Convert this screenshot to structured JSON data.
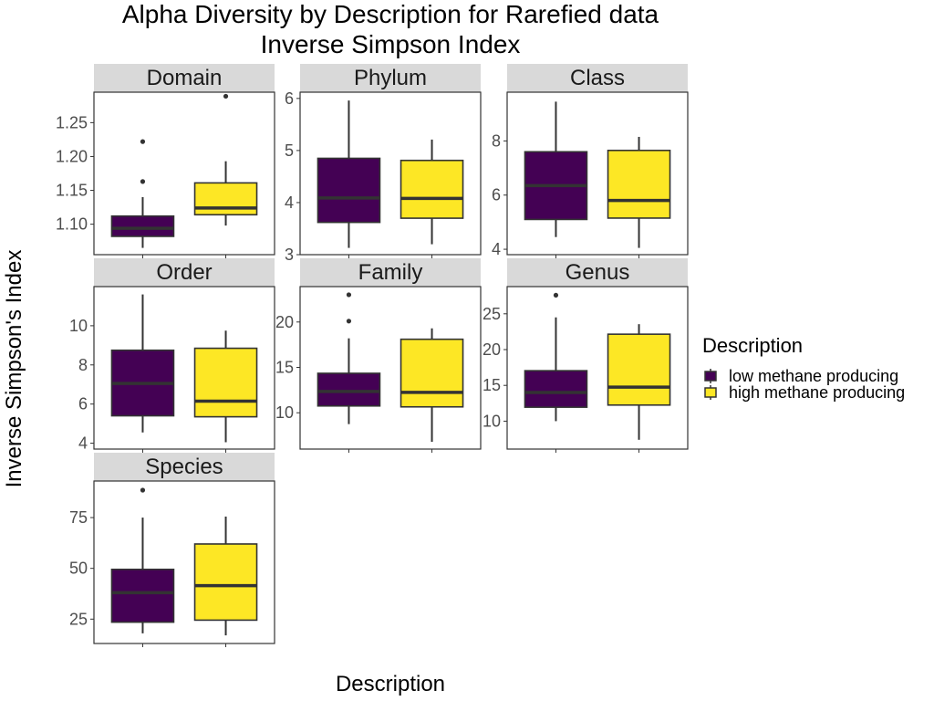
{
  "chart_data": {
    "type": "boxplot",
    "title": "Alpha Diversity by Description for Rarefied data",
    "subtitle": "Inverse Simpson Index",
    "xlabel": "Description",
    "ylabel": "Inverse Simpson's Index",
    "legend": {
      "title": "Description",
      "placement": "right",
      "entries": [
        {
          "label": "low methane producing",
          "color": "#440154"
        },
        {
          "label": "high methane producing",
          "color": "#FDE725"
        }
      ]
    },
    "facets": [
      {
        "name": "Domain",
        "ylim": [
          1.055,
          1.295
        ],
        "yticks": [
          1.1,
          1.15,
          1.2,
          1.25
        ],
        "ytick_labels": [
          "1.10",
          "1.15",
          "1.20",
          "1.25"
        ],
        "boxes": [
          {
            "group": "low methane producing",
            "min": 1.065,
            "q1": 1.082,
            "median": 1.094,
            "q3": 1.112,
            "max": 1.14,
            "outliers": [
              1.163,
              1.222
            ]
          },
          {
            "group": "high methane producing",
            "min": 1.098,
            "q1": 1.114,
            "median": 1.124,
            "q3": 1.161,
            "max": 1.193,
            "outliers": [
              1.289
            ]
          }
        ]
      },
      {
        "name": "Phylum",
        "ylim": [
          3.0,
          6.12
        ],
        "yticks": [
          3,
          4,
          5,
          6
        ],
        "ytick_labels": [
          "3",
          "4",
          "5",
          "6"
        ],
        "boxes": [
          {
            "group": "low methane producing",
            "min": 3.13,
            "q1": 3.62,
            "median": 4.09,
            "q3": 4.85,
            "max": 5.96,
            "outliers": []
          },
          {
            "group": "high methane producing",
            "min": 3.2,
            "q1": 3.7,
            "median": 4.08,
            "q3": 4.81,
            "max": 5.21,
            "outliers": []
          }
        ]
      },
      {
        "name": "Class",
        "ylim": [
          3.8,
          9.8
        ],
        "yticks": [
          4,
          6,
          8
        ],
        "ytick_labels": [
          "4",
          "6",
          "8"
        ],
        "boxes": [
          {
            "group": "low methane producing",
            "min": 4.45,
            "q1": 5.1,
            "median": 6.35,
            "q3": 7.6,
            "max": 9.45,
            "outliers": []
          },
          {
            "group": "high methane producing",
            "min": 4.05,
            "q1": 5.15,
            "median": 5.8,
            "q3": 7.65,
            "max": 8.15,
            "outliers": []
          }
        ]
      },
      {
        "name": "Order",
        "ylim": [
          3.7,
          12.0
        ],
        "yticks": [
          4,
          6,
          8,
          10
        ],
        "ytick_labels": [
          "4",
          "6",
          "8",
          "10"
        ],
        "boxes": [
          {
            "group": "low methane producing",
            "min": 4.55,
            "q1": 5.4,
            "median": 7.05,
            "q3": 8.75,
            "max": 11.6,
            "outliers": []
          },
          {
            "group": "high methane producing",
            "min": 4.05,
            "q1": 5.35,
            "median": 6.15,
            "q3": 8.85,
            "max": 9.75,
            "outliers": []
          }
        ]
      },
      {
        "name": "Family",
        "ylim": [
          6.0,
          23.9
        ],
        "yticks": [
          10,
          15,
          20
        ],
        "ytick_labels": [
          "10",
          "15",
          "20"
        ],
        "boxes": [
          {
            "group": "low methane producing",
            "min": 8.75,
            "q1": 10.75,
            "median": 12.35,
            "q3": 14.35,
            "max": 18.2,
            "outliers": [
              20.1,
              23.0
            ]
          },
          {
            "group": "high methane producing",
            "min": 6.8,
            "q1": 10.65,
            "median": 12.25,
            "q3": 18.1,
            "max": 19.3,
            "outliers": []
          }
        ]
      },
      {
        "name": "Genus",
        "ylim": [
          6.1,
          28.8
        ],
        "yticks": [
          10,
          15,
          20,
          25
        ],
        "ytick_labels": [
          "10",
          "15",
          "20",
          "25"
        ],
        "boxes": [
          {
            "group": "low methane producing",
            "min": 10.0,
            "q1": 11.95,
            "median": 14.0,
            "q3": 17.05,
            "max": 24.5,
            "outliers": [
              27.6
            ]
          },
          {
            "group": "high methane producing",
            "min": 7.4,
            "q1": 12.25,
            "median": 14.75,
            "q3": 22.15,
            "max": 23.55,
            "outliers": []
          }
        ]
      },
      {
        "name": "Species",
        "ylim": [
          13.0,
          93.0
        ],
        "yticks": [
          25,
          50,
          75
        ],
        "ytick_labels": [
          "25",
          "50",
          "75"
        ],
        "boxes": [
          {
            "group": "low methane producing",
            "min": 18.0,
            "q1": 23.5,
            "median": 38.0,
            "q3": 49.5,
            "max": 75.0,
            "outliers": [
              88.5
            ]
          },
          {
            "group": "high methane producing",
            "min": 17.0,
            "q1": 24.5,
            "median": 41.5,
            "q3": 62.0,
            "max": 75.5,
            "outliers": []
          }
        ]
      }
    ]
  }
}
